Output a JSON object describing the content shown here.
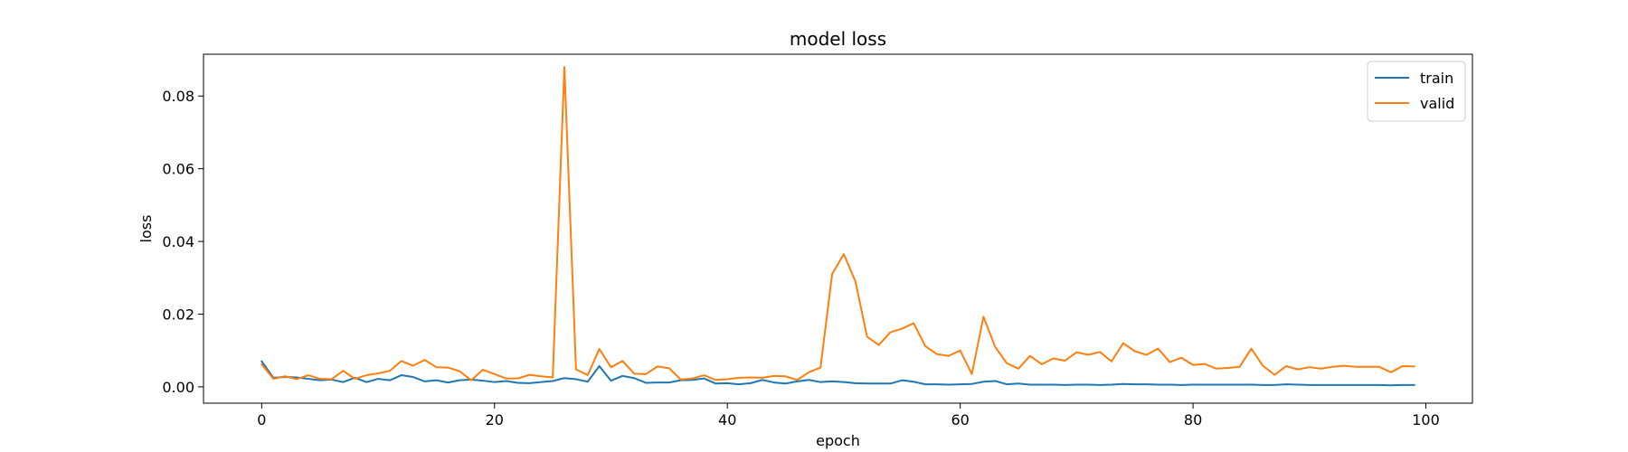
{
  "chart_data": {
    "type": "line",
    "title": "model loss",
    "xlabel": "epoch",
    "ylabel": "loss",
    "xlim": [
      -5,
      104
    ],
    "ylim": [
      -0.0045,
      0.0915
    ],
    "xticks": [
      0,
      20,
      40,
      60,
      80,
      100
    ],
    "xtick_labels": [
      "0",
      "20",
      "40",
      "60",
      "80",
      "100"
    ],
    "yticks": [
      0.0,
      0.02,
      0.04,
      0.06,
      0.08
    ],
    "ytick_labels": [
      "0.00",
      "0.02",
      "0.04",
      "0.06",
      "0.08"
    ],
    "grid": false,
    "legend_position": "upper right",
    "x": [
      0,
      1,
      2,
      3,
      4,
      5,
      6,
      7,
      8,
      9,
      10,
      11,
      12,
      13,
      14,
      15,
      16,
      17,
      18,
      19,
      20,
      21,
      22,
      23,
      24,
      25,
      26,
      27,
      28,
      29,
      30,
      31,
      32,
      33,
      34,
      35,
      36,
      37,
      38,
      39,
      40,
      41,
      42,
      43,
      44,
      45,
      46,
      47,
      48,
      49,
      50,
      51,
      52,
      53,
      54,
      55,
      56,
      57,
      58,
      59,
      60,
      61,
      62,
      63,
      64,
      65,
      66,
      67,
      68,
      69,
      70,
      71,
      72,
      73,
      74,
      75,
      76,
      77,
      78,
      79,
      80,
      81,
      82,
      83,
      84,
      85,
      86,
      87,
      88,
      89,
      90,
      91,
      92,
      93,
      94,
      95,
      96,
      97,
      98,
      99
    ],
    "series": [
      {
        "name": "train",
        "color": "#1f77b4",
        "values": [
          0.007,
          0.0025,
          0.0027,
          0.0026,
          0.0022,
          0.0018,
          0.002,
          0.0013,
          0.0025,
          0.0013,
          0.0022,
          0.0018,
          0.0032,
          0.0027,
          0.0015,
          0.0018,
          0.0012,
          0.0018,
          0.002,
          0.0017,
          0.0013,
          0.0016,
          0.0011,
          0.001,
          0.0013,
          0.0016,
          0.0024,
          0.0021,
          0.0014,
          0.0057,
          0.0017,
          0.003,
          0.0024,
          0.0011,
          0.0012,
          0.0012,
          0.0018,
          0.0019,
          0.0023,
          0.0009,
          0.001,
          0.0007,
          0.001,
          0.0019,
          0.0012,
          0.0009,
          0.0015,
          0.0019,
          0.0013,
          0.0015,
          0.0013,
          0.001,
          0.0009,
          0.0009,
          0.0009,
          0.0018,
          0.0014,
          0.0007,
          0.0007,
          0.0006,
          0.0007,
          0.0008,
          0.0014,
          0.0016,
          0.0007,
          0.0009,
          0.0006,
          0.0006,
          0.0006,
          0.0005,
          0.0006,
          0.0006,
          0.0005,
          0.0006,
          0.0008,
          0.0007,
          0.0007,
          0.0006,
          0.0006,
          0.0005,
          0.0006,
          0.0006,
          0.0006,
          0.0006,
          0.0006,
          0.0006,
          0.0005,
          0.0005,
          0.0007,
          0.0006,
          0.0005,
          0.0005,
          0.0005,
          0.0005,
          0.0005,
          0.0005,
          0.0005,
          0.0004,
          0.0005,
          0.0005
        ]
      },
      {
        "name": "valid",
        "color": "#ff7f0e",
        "values": [
          0.0062,
          0.0022,
          0.0029,
          0.0021,
          0.0032,
          0.0022,
          0.0021,
          0.0044,
          0.0022,
          0.0032,
          0.0037,
          0.0044,
          0.0071,
          0.0058,
          0.0074,
          0.0054,
          0.0053,
          0.0043,
          0.0018,
          0.0047,
          0.0035,
          0.0023,
          0.0023,
          0.0033,
          0.0029,
          0.0026,
          0.088,
          0.0048,
          0.0032,
          0.0104,
          0.0054,
          0.0071,
          0.0036,
          0.0035,
          0.0056,
          0.0051,
          0.002,
          0.0023,
          0.0032,
          0.0019,
          0.0021,
          0.0025,
          0.0026,
          0.0025,
          0.003,
          0.0029,
          0.0019,
          0.004,
          0.0053,
          0.031,
          0.0365,
          0.029,
          0.0138,
          0.0115,
          0.015,
          0.016,
          0.0175,
          0.0112,
          0.009,
          0.0085,
          0.01,
          0.0035,
          0.0193,
          0.011,
          0.0065,
          0.005,
          0.0085,
          0.0062,
          0.0078,
          0.0072,
          0.0095,
          0.0088,
          0.0096,
          0.007,
          0.012,
          0.0098,
          0.0088,
          0.0105,
          0.0068,
          0.008,
          0.006,
          0.0063,
          0.005,
          0.0052,
          0.0055,
          0.0105,
          0.0058,
          0.0033,
          0.0057,
          0.0048,
          0.0054,
          0.005,
          0.0055,
          0.0058,
          0.0055,
          0.0055,
          0.0055,
          0.004,
          0.0057,
          0.0056
        ]
      }
    ]
  }
}
